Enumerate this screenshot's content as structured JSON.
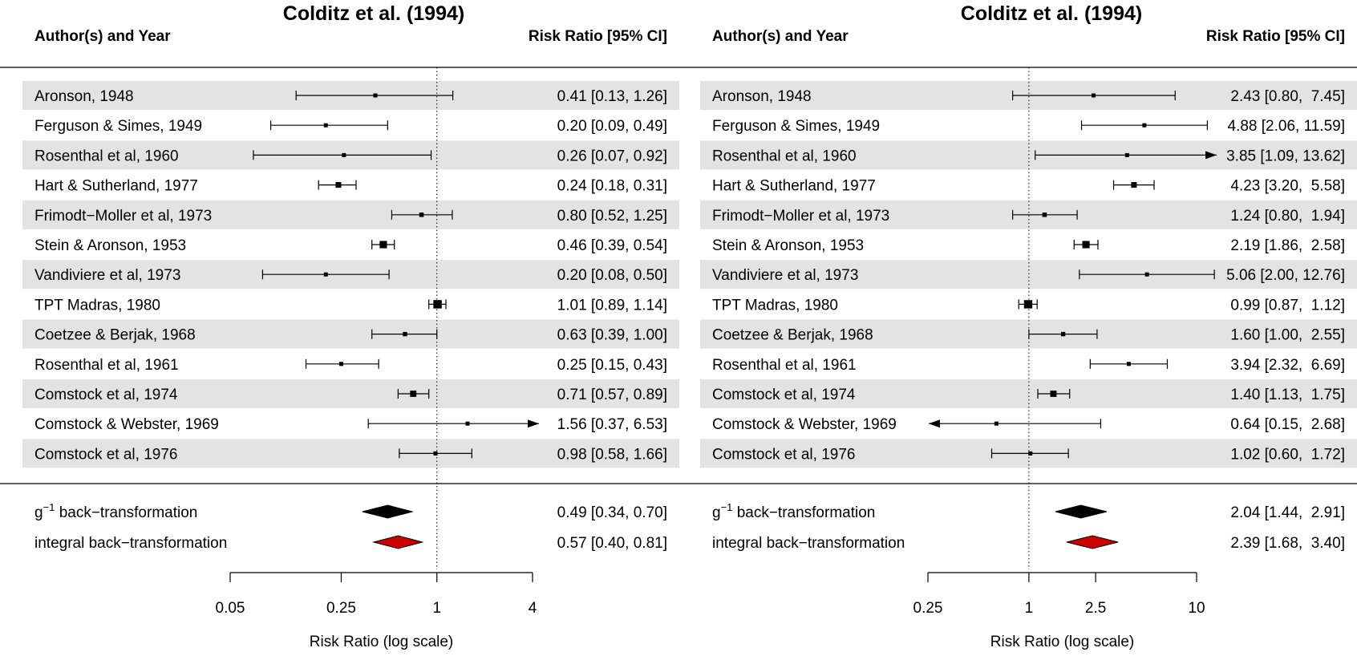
{
  "chart_data": [
    {
      "type": "forest",
      "title": "Colditz et al. (1994)",
      "header_left": "Author(s) and Year",
      "header_right": "Risk Ratio [95% CI]",
      "xlabel": "Risk Ratio (log scale)",
      "xscale": "log",
      "xlim": [
        0.05,
        4
      ],
      "ticks": [
        0.05,
        0.25,
        1,
        4
      ],
      "tick_labels": [
        "0.05",
        "0.25",
        "1",
        "4"
      ],
      "reference_line": 1,
      "studies": [
        {
          "label": "Aronson, 1948",
          "rr": 0.41,
          "lo": 0.13,
          "hi": 1.26,
          "text": "0.41 [0.13, 1.26]"
        },
        {
          "label": "Ferguson & Simes, 1949",
          "rr": 0.2,
          "lo": 0.09,
          "hi": 0.49,
          "text": "0.20 [0.09, 0.49]"
        },
        {
          "label": "Rosenthal et al, 1960",
          "rr": 0.26,
          "lo": 0.07,
          "hi": 0.92,
          "text": "0.26 [0.07, 0.92]"
        },
        {
          "label": "Hart & Sutherland, 1977",
          "rr": 0.24,
          "lo": 0.18,
          "hi": 0.31,
          "text": "0.24 [0.18, 0.31]"
        },
        {
          "label": "Frimodt−Moller et al, 1973",
          "rr": 0.8,
          "lo": 0.52,
          "hi": 1.25,
          "text": "0.80 [0.52, 1.25]"
        },
        {
          "label": "Stein & Aronson, 1953",
          "rr": 0.46,
          "lo": 0.39,
          "hi": 0.54,
          "text": "0.46 [0.39, 0.54]"
        },
        {
          "label": "Vandiviere et al, 1973",
          "rr": 0.2,
          "lo": 0.08,
          "hi": 0.5,
          "text": "0.20 [0.08, 0.50]"
        },
        {
          "label": "TPT Madras, 1980",
          "rr": 1.01,
          "lo": 0.89,
          "hi": 1.14,
          "text": "1.01 [0.89, 1.14]"
        },
        {
          "label": "Coetzee & Berjak, 1968",
          "rr": 0.63,
          "lo": 0.39,
          "hi": 1.0,
          "text": "0.63 [0.39, 1.00]"
        },
        {
          "label": "Rosenthal et al, 1961",
          "rr": 0.25,
          "lo": 0.15,
          "hi": 0.43,
          "text": "0.25 [0.15, 0.43]"
        },
        {
          "label": "Comstock et al, 1974",
          "rr": 0.71,
          "lo": 0.57,
          "hi": 0.89,
          "text": "0.71 [0.57, 0.89]"
        },
        {
          "label": "Comstock & Webster, 1969",
          "rr": 1.56,
          "lo": 0.37,
          "hi": 6.53,
          "text": "1.56 [0.37, 6.53]"
        },
        {
          "label": "Comstock et al, 1976",
          "rr": 0.98,
          "lo": 0.58,
          "hi": 1.66,
          "text": "0.98 [0.58, 1.66]"
        }
      ],
      "summaries": [
        {
          "label_main": "back−transformation",
          "label_prefix": "g",
          "label_sup": "−1",
          "rr": 0.49,
          "lo": 0.34,
          "hi": 0.7,
          "text": "0.49 [0.34, 0.70]",
          "color": "#000000"
        },
        {
          "label_main": "integral back−transformation",
          "label_prefix": "",
          "label_sup": "",
          "rr": 0.57,
          "lo": 0.4,
          "hi": 0.81,
          "text": "0.57 [0.40, 0.81]",
          "color": "#cc0000"
        }
      ]
    },
    {
      "type": "forest",
      "title": "Colditz et al. (1994)",
      "header_left": "Author(s) and Year",
      "header_right": "Risk Ratio [95% CI]",
      "xlabel": "Risk Ratio (log scale)",
      "xscale": "log",
      "xlim": [
        0.25,
        10
      ],
      "ticks": [
        0.25,
        1,
        2.5,
        10
      ],
      "tick_labels": [
        "0.25",
        "1",
        "2.5",
        "10"
      ],
      "reference_line": 1,
      "studies": [
        {
          "label": "Aronson, 1948",
          "rr": 2.43,
          "lo": 0.8,
          "hi": 7.45,
          "text": "2.43 [0.80,  7.45]"
        },
        {
          "label": "Ferguson & Simes, 1949",
          "rr": 4.88,
          "lo": 2.06,
          "hi": 11.59,
          "text": "4.88 [2.06, 11.59]"
        },
        {
          "label": "Rosenthal et al, 1960",
          "rr": 3.85,
          "lo": 1.09,
          "hi": 13.62,
          "text": "3.85 [1.09, 13.62]"
        },
        {
          "label": "Hart & Sutherland, 1977",
          "rr": 4.23,
          "lo": 3.2,
          "hi": 5.58,
          "text": "4.23 [3.20,  5.58]"
        },
        {
          "label": "Frimodt−Moller et al, 1973",
          "rr": 1.24,
          "lo": 0.8,
          "hi": 1.94,
          "text": "1.24 [0.80,  1.94]"
        },
        {
          "label": "Stein & Aronson, 1953",
          "rr": 2.19,
          "lo": 1.86,
          "hi": 2.58,
          "text": "2.19 [1.86,  2.58]"
        },
        {
          "label": "Vandiviere et al, 1973",
          "rr": 5.06,
          "lo": 2.0,
          "hi": 12.76,
          "text": "5.06 [2.00, 12.76]"
        },
        {
          "label": "TPT Madras, 1980",
          "rr": 0.99,
          "lo": 0.87,
          "hi": 1.12,
          "text": "0.99 [0.87,  1.12]"
        },
        {
          "label": "Coetzee & Berjak, 1968",
          "rr": 1.6,
          "lo": 1.0,
          "hi": 2.55,
          "text": "1.60 [1.00,  2.55]"
        },
        {
          "label": "Rosenthal et al, 1961",
          "rr": 3.94,
          "lo": 2.32,
          "hi": 6.69,
          "text": "3.94 [2.32,  6.69]"
        },
        {
          "label": "Comstock et al, 1974",
          "rr": 1.4,
          "lo": 1.13,
          "hi": 1.75,
          "text": "1.40 [1.13,  1.75]"
        },
        {
          "label": "Comstock & Webster, 1969",
          "rr": 0.64,
          "lo": 0.15,
          "hi": 2.68,
          "text": "0.64 [0.15,  2.68]"
        },
        {
          "label": "Comstock et al, 1976",
          "rr": 1.02,
          "lo": 0.6,
          "hi": 1.72,
          "text": "1.02 [0.60,  1.72]"
        }
      ],
      "summaries": [
        {
          "label_main": "back−transformation",
          "label_prefix": "g",
          "label_sup": "−1",
          "rr": 2.04,
          "lo": 1.44,
          "hi": 2.91,
          "text": "2.04 [1.44,  2.91]",
          "color": "#000000"
        },
        {
          "label_main": "integral back−transformation",
          "label_prefix": "",
          "label_sup": "",
          "rr": 2.39,
          "lo": 1.68,
          "hi": 3.4,
          "text": "2.39 [1.68,  3.40]",
          "color": "#cc0000"
        }
      ]
    }
  ]
}
